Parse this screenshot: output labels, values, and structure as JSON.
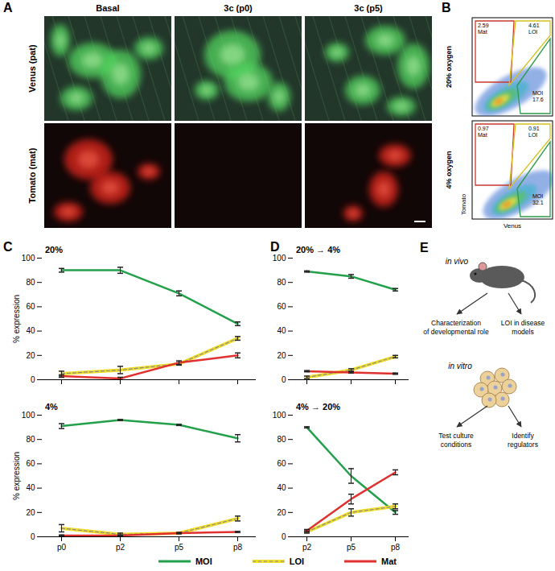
{
  "figure": {
    "A": {
      "letter": "A",
      "columns": [
        "Basal",
        "3c (p0)",
        "3c (p5)"
      ],
      "rows": [
        "Venus (pat)",
        "Tomato (mat)"
      ]
    },
    "B": {
      "letter": "B",
      "x_label": "Venus",
      "y_label": "Tomato",
      "plots": [
        {
          "title": "20% oxygen",
          "gates": [
            {
              "name": "Mat",
              "value": 2.59
            },
            {
              "name": "LOI",
              "value": 4.61
            },
            {
              "name": "MOI",
              "value": 17.6
            }
          ]
        },
        {
          "title": "4% oxygen",
          "gates": [
            {
              "name": "Mat",
              "value": 0.97
            },
            {
              "name": "LOI",
              "value": 0.91
            },
            {
              "name": "MOI",
              "value": 32.1
            }
          ]
        }
      ]
    },
    "C": {
      "letter": "C"
    },
    "D": {
      "letter": "D"
    },
    "E": {
      "letter": "E",
      "groups": [
        {
          "label": "in vivo",
          "outcomes": [
            [
              "Characterization",
              "of developmental role"
            ],
            [
              "LOI in disease",
              "models"
            ]
          ]
        },
        {
          "label": "in vitro",
          "outcomes": [
            [
              "Test culture",
              "conditions"
            ],
            [
              "Identify",
              "regulators"
            ]
          ]
        }
      ]
    }
  },
  "chart_data": [
    {
      "type": "line",
      "title": "20%",
      "y_label": "% expression",
      "categories": [
        "p0",
        "p2",
        "p5",
        "p8"
      ],
      "ylim": [
        0,
        100
      ],
      "yticks": [
        0,
        20,
        40,
        60,
        80,
        100
      ],
      "tick_labels": "y",
      "legend": "bottom",
      "series": [
        {
          "name": "MOI",
          "color": "#22a04b",
          "values": [
            90,
            90,
            71,
            46
          ],
          "errors": [
            1.5,
            2.5,
            2,
            1.5
          ]
        },
        {
          "name": "LOI",
          "color": "#f0de2a",
          "line_style": "dashed",
          "values": [
            5,
            8,
            13,
            34
          ],
          "errors": [
            2,
            3,
            1,
            1.5
          ]
        },
        {
          "name": "Mat",
          "color": "#e0312f",
          "values": [
            3,
            1,
            14,
            20
          ],
          "errors": [
            1,
            1,
            1.5,
            2
          ]
        }
      ]
    },
    {
      "type": "line",
      "title": "4%",
      "y_label": "% expression",
      "categories": [
        "p0",
        "p2",
        "p5",
        "p8"
      ],
      "ylim": [
        0,
        100
      ],
      "yticks": [
        0,
        20,
        40,
        60,
        80,
        100
      ],
      "series": [
        {
          "name": "MOI",
          "color": "#22a04b",
          "values": [
            91,
            96,
            92,
            81
          ],
          "errors": [
            2,
            0.5,
            0.5,
            3
          ]
        },
        {
          "name": "LOI",
          "color": "#f0de2a",
          "line_style": "dashed",
          "values": [
            7,
            2,
            3,
            15
          ],
          "errors": [
            3,
            1,
            0.5,
            2
          ]
        },
        {
          "name": "Mat",
          "color": "#e0312f",
          "values": [
            1,
            1,
            3,
            4
          ],
          "errors": [
            0.5,
            0.5,
            0.5,
            0.5
          ]
        }
      ]
    },
    {
      "type": "line",
      "title": "20% → 4%",
      "categories": [
        "p2",
        "p5",
        "p8"
      ],
      "ylim": [
        0,
        100
      ],
      "yticks": [
        0,
        20,
        40,
        60,
        80,
        100
      ],
      "tick_labels": "y",
      "series": [
        {
          "name": "MOI",
          "color": "#22a04b",
          "values": [
            89,
            85,
            74
          ],
          "errors": [
            0.5,
            1.5,
            1
          ]
        },
        {
          "name": "LOI",
          "color": "#f0de2a",
          "line_style": "dashed",
          "values": [
            2,
            8,
            19
          ],
          "errors": [
            1,
            1,
            1
          ]
        },
        {
          "name": "Mat",
          "color": "#e0312f",
          "values": [
            7,
            6,
            5
          ],
          "errors": [
            0.5,
            0.5,
            0.5
          ]
        }
      ]
    },
    {
      "type": "line",
      "title": "4% → 20%",
      "categories": [
        "p2",
        "p5",
        "p8"
      ],
      "ylim": [
        0,
        100
      ],
      "yticks": [
        0,
        20,
        40,
        60,
        80,
        100
      ],
      "series": [
        {
          "name": "MOI",
          "color": "#22a04b",
          "values": [
            90,
            50,
            20
          ],
          "errors": [
            0.5,
            6,
            1.5
          ]
        },
        {
          "name": "LOI",
          "color": "#f0de2a",
          "line_style": "dashed",
          "values": [
            4,
            20,
            25
          ],
          "errors": [
            1,
            3,
            2
          ]
        },
        {
          "name": "Mat",
          "color": "#e0312f",
          "values": [
            5,
            31,
            53
          ],
          "errors": [
            1,
            4,
            2
          ]
        }
      ]
    }
  ]
}
